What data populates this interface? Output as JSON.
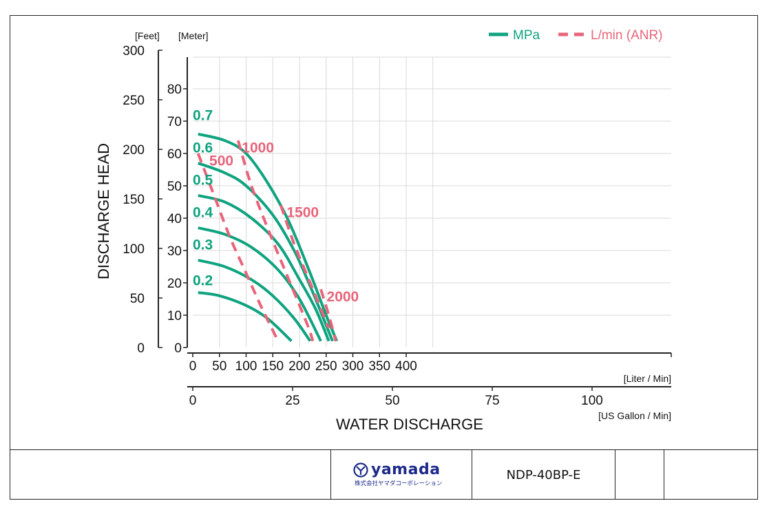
{
  "chart_data": {
    "type": "line",
    "title": "",
    "xlabel": "WATER DISCHARGE",
    "ylabel": "DISCHARGE HEAD",
    "x_unit_primary": "[Liter / Min]",
    "x_unit_secondary": "[US Gallon / Min]",
    "y_unit_feet": "[Feet]",
    "y_unit_meter": "[Meter]",
    "xlim": [
      0,
      450
    ],
    "ylim_meter": [
      0,
      90
    ],
    "x_ticks": [
      "0",
      "50",
      "100",
      "150",
      "200",
      "250",
      "300",
      "350",
      "400"
    ],
    "x2_ticks": [
      "0",
      "25",
      "50",
      "75",
      "100"
    ],
    "y_meter_ticks": [
      "0",
      "10",
      "20",
      "30",
      "40",
      "50",
      "60",
      "70",
      "80"
    ],
    "y_feet_ticks": [
      "0",
      "50",
      "100",
      "150",
      "200",
      "250",
      "300"
    ],
    "grid": true,
    "legend": {
      "position": "top-right",
      "entries": [
        {
          "label": "MPa",
          "style": "solid",
          "color": "#0fa37f"
        },
        {
          "label": "L/min (ANR)",
          "style": "dashed",
          "color": "#e8647a"
        }
      ]
    },
    "series": [
      {
        "name": "0.7",
        "style": "solid",
        "x": [
          10,
          60,
          100,
          140,
          180,
          220,
          250,
          270
        ],
        "y": [
          66,
          64,
          60,
          51,
          39,
          23,
          10,
          2
        ]
      },
      {
        "name": "0.6",
        "style": "solid",
        "x": [
          10,
          60,
          100,
          150,
          190,
          220,
          240,
          262
        ],
        "y": [
          57,
          54,
          50,
          41,
          30,
          19,
          11,
          2
        ]
      },
      {
        "name": "0.5",
        "style": "solid",
        "x": [
          10,
          60,
          110,
          160,
          200,
          230,
          255
        ],
        "y": [
          47,
          45,
          40,
          32,
          21,
          12,
          2
        ]
      },
      {
        "name": "0.4",
        "style": "solid",
        "x": [
          10,
          60,
          110,
          160,
          200,
          240
        ],
        "y": [
          37,
          35,
          31,
          24,
          15,
          2
        ]
      },
      {
        "name": "0.3",
        "style": "solid",
        "x": [
          10,
          60,
          110,
          150,
          190,
          220
        ],
        "y": [
          27,
          25,
          21,
          16,
          9,
          2
        ]
      },
      {
        "name": "0.2",
        "style": "solid",
        "x": [
          10,
          50,
          100,
          140,
          185
        ],
        "y": [
          17,
          16,
          13,
          9,
          2
        ]
      },
      {
        "name": "500",
        "style": "dashed",
        "x": [
          10,
          40,
          70,
          100,
          130,
          160
        ],
        "y": [
          60,
          47,
          34,
          23,
          12,
          2
        ]
      },
      {
        "name": "1000",
        "style": "dashed",
        "x": [
          85,
          110,
          145,
          180,
          215,
          225
        ],
        "y": [
          64,
          50,
          35,
          21,
          7,
          2
        ]
      },
      {
        "name": "1500",
        "style": "dashed",
        "x": [
          165,
          190,
          210,
          230,
          255
        ],
        "y": [
          44,
          32,
          24,
          16,
          6
        ]
      },
      {
        "name": "2000",
        "style": "dashed",
        "x": [
          240,
          255,
          268
        ],
        "y": [
          18,
          10,
          2
        ]
      }
    ],
    "series_labels": [
      {
        "text": "0.7",
        "color": "#0fa37f",
        "x": 0,
        "y": 72
      },
      {
        "text": "0.6",
        "color": "#0fa37f",
        "x": 0,
        "y": 62
      },
      {
        "text": "0.5",
        "color": "#0fa37f",
        "x": 0,
        "y": 52
      },
      {
        "text": "0.4",
        "color": "#0fa37f",
        "x": 0,
        "y": 42
      },
      {
        "text": "0.3",
        "color": "#0fa37f",
        "x": 0,
        "y": 32
      },
      {
        "text": "0.2",
        "color": "#0fa37f",
        "x": 0,
        "y": 21
      },
      {
        "text": "500",
        "color": "#e8647a",
        "x": 31,
        "y": 58
      },
      {
        "text": "1000",
        "color": "#e8647a",
        "x": 92,
        "y": 62
      },
      {
        "text": "1500",
        "color": "#e8647a",
        "x": 176,
        "y": 42
      },
      {
        "text": "2000",
        "color": "#e8647a",
        "x": 251,
        "y": 16
      }
    ]
  },
  "colors": {
    "mpa": "#0fa37f",
    "anr": "#e8647a",
    "grid": "#d9d9d9",
    "axis": "#222222"
  },
  "title_block": {
    "logo_text": "yamada",
    "logo_subtext": "株式会社ヤマダコーポレーション",
    "model": "NDP-40BP-E"
  }
}
